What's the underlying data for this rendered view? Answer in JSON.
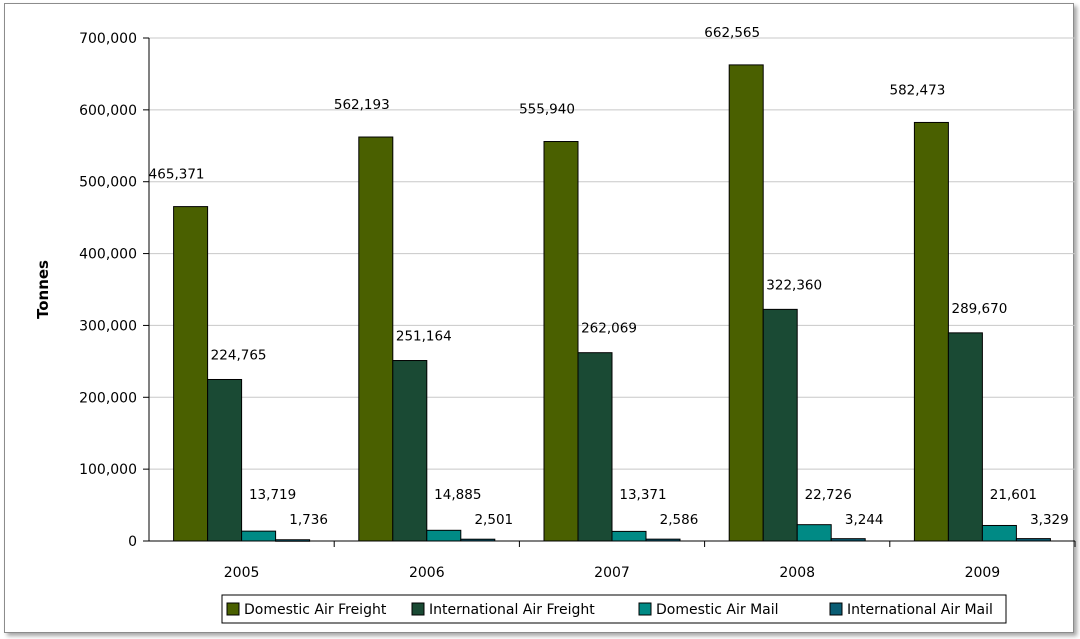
{
  "chart_data": {
    "type": "bar",
    "title": "",
    "xlabel": "",
    "ylabel": "Tonnes",
    "categories": [
      "2005",
      "2006",
      "2007",
      "2008",
      "2009"
    ],
    "ylim": [
      0,
      700000
    ],
    "yticks": [
      0,
      100000,
      200000,
      300000,
      400000,
      500000,
      600000,
      700000
    ],
    "ytick_labels": [
      "0",
      "100,000",
      "200,000",
      "300,000",
      "400,000",
      "500,000",
      "600,000",
      "700,000"
    ],
    "grid": true,
    "legend_position": "bottom",
    "series": [
      {
        "name": "Domestic Air Freight",
        "color": "#4a6000",
        "values": [
          465371,
          562193,
          555940,
          662565,
          582473
        ],
        "labels": [
          "465,371",
          "562,193",
          "555,940",
          "662,565",
          "582,473"
        ]
      },
      {
        "name": "International Air Freight",
        "color": "#1a4a34",
        "values": [
          224765,
          251164,
          262069,
          322360,
          289670
        ],
        "labels": [
          "224,765",
          "251,164",
          "262,069",
          "322,360",
          "289,670"
        ]
      },
      {
        "name": "Domestic Air Mail",
        "color": "#008a85",
        "values": [
          13719,
          14885,
          13371,
          22726,
          21601
        ],
        "labels": [
          "13,719",
          "14,885",
          "13,371",
          "22,726",
          "21,601"
        ]
      },
      {
        "name": "International Air Mail",
        "color": "#0a5d74",
        "values": [
          1736,
          2501,
          2586,
          3244,
          3329
        ],
        "labels": [
          "1,736",
          "2,501",
          "2,586",
          "3,244",
          "3,329"
        ]
      }
    ]
  }
}
